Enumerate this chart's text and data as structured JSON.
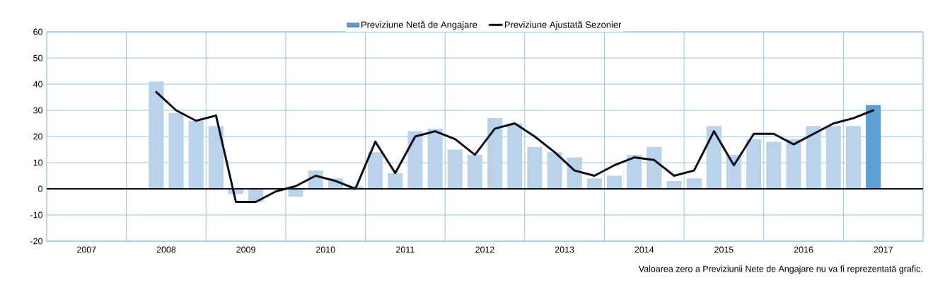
{
  "chart_data": {
    "type": "bar",
    "x": [
      2008.375,
      2008.625,
      2008.875,
      2009.125,
      2009.375,
      2009.625,
      2009.875,
      2010.125,
      2010.375,
      2010.625,
      2010.875,
      2011.125,
      2011.375,
      2011.625,
      2011.875,
      2012.125,
      2012.375,
      2012.625,
      2012.875,
      2013.125,
      2013.375,
      2013.625,
      2013.875,
      2014.125,
      2014.375,
      2014.625,
      2014.875,
      2015.125,
      2015.375,
      2015.625,
      2015.875,
      2016.125,
      2016.375,
      2016.625,
      2016.875,
      2017.125,
      2017.375
    ],
    "series": [
      {
        "name": "Previziune Netă de Angajare",
        "color": "#5b9fd4",
        "colors": [
          "#b8d3ea",
          "#b8d3ea",
          "#b8d3ea",
          "#b8d3ea",
          "#b8d3ea",
          "#b8d3ea",
          "#b8d3ea",
          "#b8d3ea",
          "#b8d3ea",
          "#b8d3ea",
          "#b8d3ea",
          "#b8d3ea",
          "#b8d3ea",
          "#b8d3ea",
          "#b8d3ea",
          "#b8d3ea",
          "#b8d3ea",
          "#b8d3ea",
          "#b8d3ea",
          "#b8d3ea",
          "#b8d3ea",
          "#b8d3ea",
          "#b8d3ea",
          "#b8d3ea",
          "#b8d3ea",
          "#b8d3ea",
          "#b8d3ea",
          "#b8d3ea",
          "#b8d3ea",
          "#b8d3ea",
          "#b8d3ea",
          "#b8d3ea",
          "#b8d3ea",
          "#b8d3ea",
          "#b8d3ea",
          "#b8d3ea",
          "#5b9fd4"
        ],
        "values": [
          41,
          29,
          26,
          24,
          -2,
          -5,
          0,
          -3,
          7,
          4,
          1,
          14,
          6,
          22,
          23,
          15,
          13,
          27,
          25,
          16,
          14,
          12,
          4,
          5,
          13,
          16,
          3,
          4,
          24,
          13,
          19,
          18,
          19,
          24,
          24,
          24,
          32
        ]
      },
      {
        "name": "Previziune Ajustată Sezonier",
        "type": "line",
        "color": "#0d0d1a",
        "values": [
          37,
          30,
          26,
          28,
          -5,
          -5,
          -1,
          1,
          5,
          3,
          0,
          18,
          6,
          20,
          22,
          19,
          13,
          23,
          25,
          20,
          14,
          7,
          5,
          9,
          12,
          11,
          5,
          7,
          22,
          9,
          21,
          21,
          17,
          21,
          25,
          27,
          30
        ]
      }
    ],
    "xlim": [
      2007,
      2018
    ],
    "xticks": [
      {
        "value": 2007.5,
        "label": "2007"
      },
      {
        "value": 2008.5,
        "label": "2008"
      },
      {
        "value": 2009.5,
        "label": "2009"
      },
      {
        "value": 2010.5,
        "label": "2010"
      },
      {
        "value": 2011.5,
        "label": "2011"
      },
      {
        "value": 2012.5,
        "label": "2012"
      },
      {
        "value": 2013.5,
        "label": "2013"
      },
      {
        "value": 2014.5,
        "label": "2014"
      },
      {
        "value": 2015.5,
        "label": "2015"
      },
      {
        "value": 2016.5,
        "label": "2016"
      },
      {
        "value": 2017.5,
        "label": "2017"
      },
      {
        "value": 2008,
        "label": null
      },
      {
        "value": 2009,
        "label": null
      },
      {
        "value": 2010,
        "label": null
      },
      {
        "value": 2011,
        "label": null
      },
      {
        "value": 2012,
        "label": null
      },
      {
        "value": 2013,
        "label": null
      },
      {
        "value": 2014,
        "label": null
      },
      {
        "value": 2015,
        "label": null
      },
      {
        "value": 2016,
        "label": null
      },
      {
        "value": 2017,
        "label": null
      }
    ],
    "ylim": [
      -20,
      60
    ],
    "yticks": [
      -20,
      -10,
      0,
      10,
      20,
      30,
      40,
      50,
      60
    ],
    "grid": true,
    "legend": "top",
    "ref_lines": [
      {
        "axis": "y",
        "value": 0,
        "color": "#0d0d1a"
      }
    ],
    "annotations": [
      "Valoarea zero a Previziunii Nete de Angajare nu va fi reprezentată grafic."
    ]
  }
}
